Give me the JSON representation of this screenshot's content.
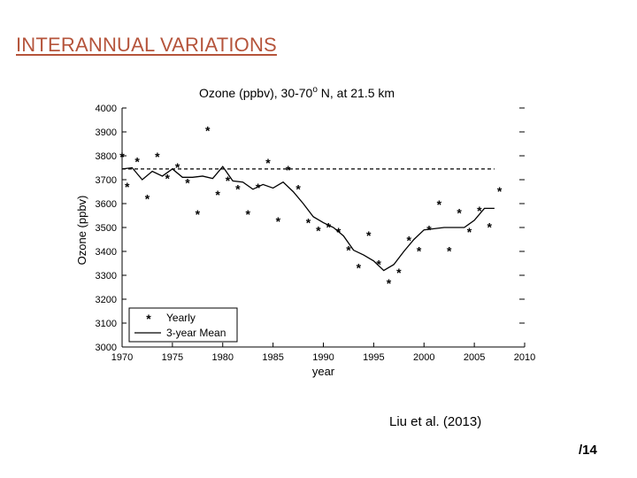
{
  "slide": {
    "title": "INTERANNUAL VARIATIONS",
    "citation": "Liu et al. (2013)",
    "page_number": "/14",
    "title_color": "#b5543b"
  },
  "chart_data": {
    "type": "scatter",
    "title": "Ozone (ppbv), 30-70",
    "title_sup": "o",
    "title_suffix": " N, at 21.5 km",
    "xlabel": "year",
    "ylabel": "Ozone (ppbv)",
    "xlim": [
      1970,
      2010
    ],
    "ylim": [
      3000,
      4000
    ],
    "xticks": [
      1970,
      1975,
      1980,
      1985,
      1990,
      1995,
      2000,
      2005,
      2010
    ],
    "yticks": [
      3000,
      3100,
      3200,
      3300,
      3400,
      3500,
      3600,
      3700,
      3800,
      3900,
      4000
    ],
    "legend": {
      "position": "bottom-left",
      "entries": [
        "Yearly",
        "3-year Mean"
      ]
    },
    "reference_line": {
      "style": "dashed",
      "y": 3745,
      "x_range": [
        1970,
        2007
      ]
    },
    "series": [
      {
        "name": "Yearly",
        "marker": "*",
        "points": [
          [
            1970,
            3800
          ],
          [
            1970.5,
            3675
          ],
          [
            1971.5,
            3780
          ],
          [
            1972.5,
            3625
          ],
          [
            1973.5,
            3800
          ],
          [
            1974.5,
            3710
          ],
          [
            1975.5,
            3755
          ],
          [
            1976.5,
            3690
          ],
          [
            1977.5,
            3560
          ],
          [
            1978.5,
            3910
          ],
          [
            1979.5,
            3640
          ],
          [
            1980.5,
            3700
          ],
          [
            1981.5,
            3665
          ],
          [
            1982.5,
            3560
          ],
          [
            1983.5,
            3670
          ],
          [
            1984.5,
            3775
          ],
          [
            1985.5,
            3530
          ],
          [
            1986.5,
            3745
          ],
          [
            1987.5,
            3665
          ],
          [
            1988.5,
            3525
          ],
          [
            1989.5,
            3490
          ],
          [
            1990.5,
            3505
          ],
          [
            1991.5,
            3485
          ],
          [
            1992.5,
            3410
          ],
          [
            1993.5,
            3335
          ],
          [
            1994.5,
            3470
          ],
          [
            1995.5,
            3350
          ],
          [
            1996.5,
            3270
          ],
          [
            1997.5,
            3315
          ],
          [
            1998.5,
            3450
          ],
          [
            1999.5,
            3405
          ],
          [
            2000.5,
            3495
          ],
          [
            2001.5,
            3600
          ],
          [
            2002.5,
            3405
          ],
          [
            2003.5,
            3565
          ],
          [
            2004.5,
            3485
          ],
          [
            2005.5,
            3575
          ],
          [
            2006.5,
            3505
          ],
          [
            2007.5,
            3655
          ]
        ]
      },
      {
        "name": "3-year Mean",
        "style": "solid",
        "points": [
          [
            1970,
            3745
          ],
          [
            1971,
            3750
          ],
          [
            1972,
            3700
          ],
          [
            1973,
            3735
          ],
          [
            1974,
            3715
          ],
          [
            1975,
            3745
          ],
          [
            1976,
            3710
          ],
          [
            1977,
            3710
          ],
          [
            1978,
            3715
          ],
          [
            1979,
            3705
          ],
          [
            1980,
            3755
          ],
          [
            1981,
            3695
          ],
          [
            1982,
            3690
          ],
          [
            1983,
            3660
          ],
          [
            1984,
            3680
          ],
          [
            1985,
            3665
          ],
          [
            1986,
            3690
          ],
          [
            1987,
            3650
          ],
          [
            1988,
            3600
          ],
          [
            1989,
            3545
          ],
          [
            1990,
            3520
          ],
          [
            1991,
            3500
          ],
          [
            1992,
            3465
          ],
          [
            1993,
            3405
          ],
          [
            1994,
            3385
          ],
          [
            1995,
            3360
          ],
          [
            1996,
            3320
          ],
          [
            1997,
            3345
          ],
          [
            1998,
            3400
          ],
          [
            1999,
            3450
          ],
          [
            2000,
            3490
          ],
          [
            2001,
            3495
          ],
          [
            2002,
            3500
          ],
          [
            2003,
            3500
          ],
          [
            2004,
            3500
          ],
          [
            2005,
            3530
          ],
          [
            2006,
            3580
          ],
          [
            2007,
            3580
          ]
        ]
      }
    ]
  }
}
